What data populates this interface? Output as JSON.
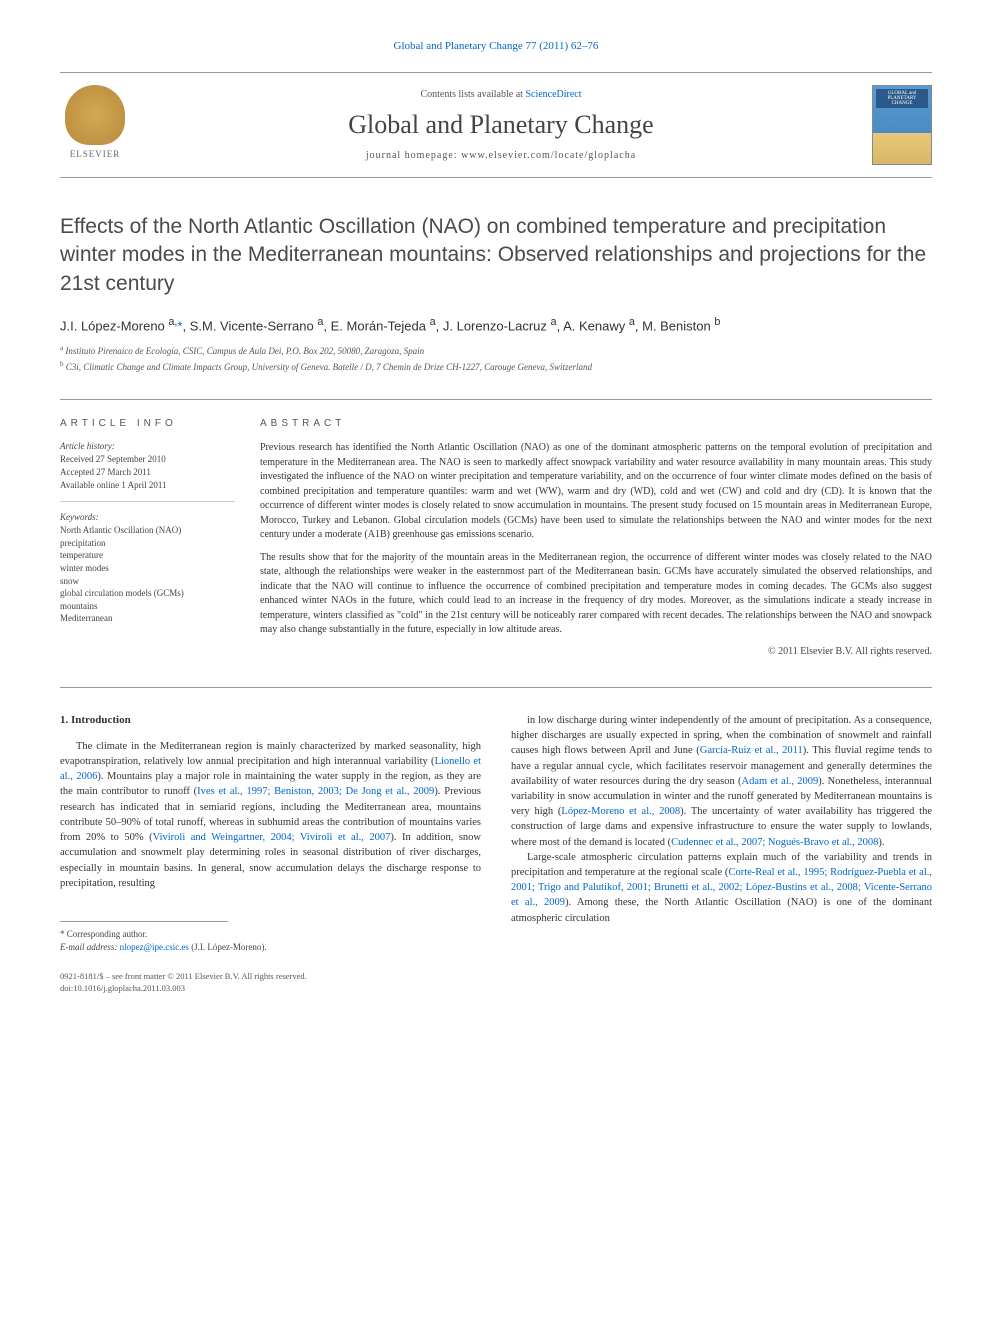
{
  "top_link": "Global and Planetary Change 77 (2011) 62–76",
  "header": {
    "contents_prefix": "Contents lists available at ",
    "contents_link": "ScienceDirect",
    "journal_name": "Global and Planetary Change",
    "homepage_prefix": "journal homepage: ",
    "homepage_url": "www.elsevier.com/locate/gloplacha",
    "elsevier_label": "ELSEVIER",
    "cover_label": "GLOBAL and PLANETARY CHANGE"
  },
  "article": {
    "title": "Effects of the North Atlantic Oscillation (NAO) on combined temperature and precipitation winter modes in the Mediterranean mountains: Observed relationships and projections for the 21st century",
    "authors_html": "J.I. López-Moreno <sup>a,</sup><a href='#'>*</a>, S.M. Vicente-Serrano <sup>a</sup>, E. Morán-Tejeda <sup>a</sup>, J. Lorenzo-Lacruz <sup>a</sup>, A. Kenawy <sup>a</sup>, M. Beniston <sup>b</sup>",
    "affiliations": [
      {
        "sup": "a",
        "text": "Instituto Pirenaico de Ecología, CSIC, Campus de Aula Dei, P.O. Box 202, 50080, Zaragoza, Spain"
      },
      {
        "sup": "b",
        "text": "C3i, Climatic Change and Climate Impacts Group, University of Geneva. Batelle / D, 7 Chemin de Drize CH-1227, Carouge Geneva, Switzerland"
      }
    ]
  },
  "meta": {
    "info_label": "ARTICLE INFO",
    "history_label": "Article history:",
    "history": [
      "Received 27 September 2010",
      "Accepted 27 March 2011",
      "Available online 1 April 2011"
    ],
    "keywords_label": "Keywords:",
    "keywords": [
      "North Atlantic Oscillation (NAO)",
      "precipitation",
      "temperature",
      "winter modes",
      "snow",
      "global circulation models (GCMs)",
      "mountains",
      "Mediterranean"
    ]
  },
  "abstract": {
    "label": "ABSTRACT",
    "para1": "Previous research has identified the North Atlantic Oscillation (NAO) as one of the dominant atmospheric patterns on the temporal evolution of precipitation and temperature in the Mediterranean area. The NAO is seen to markedly affect snowpack variability and water resource availability in many mountain areas. This study investigated the influence of the NAO on winter precipitation and temperature variability, and on the occurrence of four winter climate modes defined on the basis of combined precipitation and temperature quantiles: warm and wet (WW), warm and dry (WD), cold and wet (CW) and cold and dry (CD). It is known that the occurrence of different winter modes is closely related to snow accumulation in mountains. The present study focused on 15 mountain areas in Mediterranean Europe, Morocco, Turkey and Lebanon. Global circulation models (GCMs) have been used to simulate the relationships between the NAO and winter modes for the next century under a moderate (A1B) greenhouse gas emissions scenario.",
    "para2": "The results show that for the majority of the mountain areas in the Mediterranean region, the occurrence of different winter modes was closely related to the NAO state, although the relationships were weaker in the easternmost part of the Mediterranean basin. GCMs have accurately simulated the observed relationships, and indicate that the NAO will continue to influence the occurrence of combined precipitation and temperature modes in coming decades. The GCMs also suggest enhanced winter NAOs in the future, which could lead to an increase in the frequency of dry modes. Moreover, as the simulations indicate a steady increase in temperature, winters classified as \"cold\" in the 21st century will be noticeably rarer compared with recent decades. The relationships between the NAO and snowpack may also change substantially in the future, especially in low altitude areas.",
    "copyright": "© 2011 Elsevier B.V. All rights reserved."
  },
  "body": {
    "section_heading": "1. Introduction",
    "left_para1": "The climate in the Mediterranean region is mainly characterized by marked seasonality, high evapotranspiration, relatively low annual precipitation and high interannual variability (<a href='#'>Lionello et al., 2006</a>). Mountains play a major role in maintaining the water supply in the region, as they are the main contributor to runoff (<a href='#'>Ives et al., 1997; Beniston, 2003; De Jong et al., 2009</a>). Previous research has indicated that in semiarid regions, including the Mediterranean area, mountains contribute 50–90% of total runoff, whereas in subhumid areas the contribution of mountains varies from 20% to 50% (<a href='#'>Viviroli and Weingartner, 2004; Viviroli et al., 2007</a>). In addition, snow accumulation and snowmelt play determining roles in seasonal distribution of river discharges, especially in mountain basins. In general, snow accumulation delays the discharge response to precipitation, resulting",
    "right_para1": "in low discharge during winter independently of the amount of precipitation. As a consequence, higher discharges are usually expected in spring, when the combination of snowmelt and rainfall causes high flows between April and June (<a href='#'>García-Ruiz et al., 2011</a>). This fluvial regime tends to have a regular annual cycle, which facilitates reservoir management and generally determines the availability of water resources during the dry season (<a href='#'>Adam et al., 2009</a>). Nonetheless, interannual variability in snow accumulation in winter and the runoff generated by Mediterranean mountains is very high (<a href='#'>López-Moreno et al., 2008</a>). The uncertainty of water availability has triggered the construction of large dams and expensive infrastructure to ensure the water supply to lowlands, where most of the demand is located (<a href='#'>Cudennec et al., 2007; Nogués-Bravo et al., 2008</a>).",
    "right_para2": "Large-scale atmospheric circulation patterns explain much of the variability and trends in precipitation and temperature at the regional scale (<a href='#'>Corte-Real et al., 1995; Rodríguez-Puebla et al., 2001; Trigo and Palutikof, 2001; Brunetti et al., 2002; López-Bustins et al., 2008; Vicente-Serrano et al., 2009</a>). Among these, the North Atlantic Oscillation (NAO) is one of the dominant atmospheric circulation"
  },
  "footnote": {
    "corresp_label": "* Corresponding author.",
    "email_label": "E-mail address:",
    "email": "nlopez@ipe.csic.es",
    "email_suffix": "(J.I. López-Moreno)."
  },
  "footer": {
    "line1": "0921-8181/$ – see front matter © 2011 Elsevier B.V. All rights reserved.",
    "line2": "doi:10.1016/j.gloplacha.2011.03.003"
  },
  "colors": {
    "link": "#0066cc",
    "text": "#333333",
    "border": "#999999",
    "elsevier_gold": "#d4a853"
  },
  "typography": {
    "title_fontsize": 21,
    "journal_fontsize": 26,
    "body_fontsize": 10.5,
    "abstract_fontsize": 10,
    "meta_fontsize": 9
  }
}
